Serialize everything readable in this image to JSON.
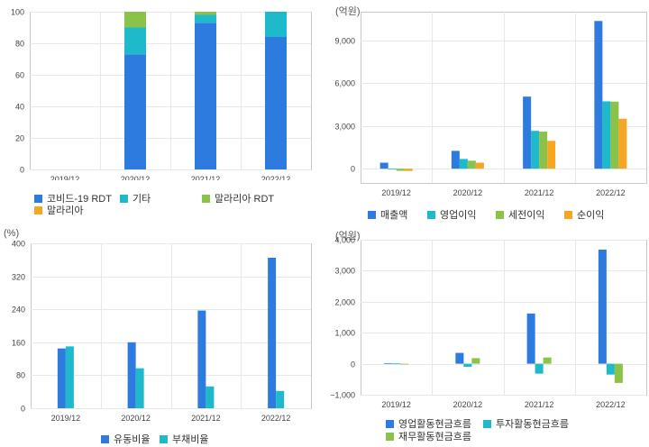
{
  "colors": {
    "blue": "#2e7be0",
    "teal": "#1fb9cc",
    "green": "#8bc34a",
    "orange": "#f5a623",
    "grid": "#e8e8e8",
    "border": "#c8c8c8"
  },
  "chart_data": [
    {
      "id": "composition",
      "type": "bar",
      "stacked": true,
      "unit": "",
      "categories": [
        "2019/12",
        "2020/12",
        "2021/12",
        "2022/12"
      ],
      "yticks": [
        "0",
        "20",
        "40",
        "60",
        "80",
        "100"
      ],
      "ylim": [
        0,
        100
      ],
      "series": [
        {
          "name": "코비드-19 RDT",
          "color": "#2e7be0",
          "values": [
            null,
            73,
            93,
            84
          ]
        },
        {
          "name": "기타",
          "color": "#1fb9cc",
          "values": [
            null,
            17,
            5,
            16
          ]
        },
        {
          "name": "말라리아 RDT",
          "color": "#8bc34a",
          "values": [
            null,
            10,
            2,
            0
          ]
        },
        {
          "name": "말라리아",
          "color": "#f5a623",
          "values": [
            null,
            0,
            0,
            0
          ]
        }
      ]
    },
    {
      "id": "income",
      "type": "bar",
      "unit": "(억원)",
      "categories": [
        "2019/12",
        "2020/12",
        "2021/12",
        "2022/12"
      ],
      "yticks": [
        "0",
        "3,000",
        "6,000",
        "9,000"
      ],
      "ylim": [
        -1000,
        11000
      ],
      "series": [
        {
          "name": "매출액",
          "color": "#2e7be0",
          "values": [
            420,
            1250,
            5050,
            10350
          ]
        },
        {
          "name": "영업이익",
          "color": "#1fb9cc",
          "values": [
            -60,
            680,
            2650,
            4720
          ]
        },
        {
          "name": "세전이익",
          "color": "#8bc34a",
          "values": [
            -150,
            560,
            2600,
            4700
          ]
        },
        {
          "name": "순이익",
          "color": "#f5a623",
          "values": [
            -160,
            420,
            1950,
            3500
          ]
        }
      ]
    },
    {
      "id": "ratios",
      "type": "bar",
      "unit": "(%)",
      "categories": [
        "2019/12",
        "2020/12",
        "2021/12",
        "2022/12"
      ],
      "yticks": [
        "0",
        "80",
        "160",
        "240",
        "320",
        "400"
      ],
      "ylim": [
        0,
        400
      ],
      "series": [
        {
          "name": "유동비율",
          "color": "#2e7be0",
          "values": [
            145,
            160,
            237,
            365
          ]
        },
        {
          "name": "부채비율",
          "color": "#1fb9cc",
          "values": [
            150,
            97,
            53,
            42
          ]
        }
      ]
    },
    {
      "id": "cashflow",
      "type": "bar",
      "unit": "(억원)",
      "categories": [
        "2019/12",
        "2020/12",
        "2021/12",
        "2022/12"
      ],
      "yticks": [
        "−1,000",
        "0",
        "1,000",
        "2,000",
        "3,000",
        "4,000"
      ],
      "ylim": [
        -1000,
        4000
      ],
      "series": [
        {
          "name": "영업활동현금흐름",
          "color": "#2e7be0",
          "values": [
            20,
            350,
            1620,
            3680
          ]
        },
        {
          "name": "투자활동현금흐름",
          "color": "#1fb9cc",
          "values": [
            10,
            -100,
            -320,
            -350
          ]
        },
        {
          "name": "재무활동현금흐름",
          "color": "#8bc34a",
          "values": [
            0,
            180,
            200,
            -620
          ]
        }
      ]
    }
  ]
}
